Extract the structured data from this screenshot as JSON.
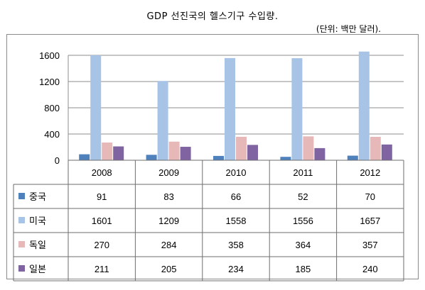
{
  "title": "GDP 선진국의 헬스기구 수입량.",
  "unit_note": "(단위: 백만 달러).",
  "chart_data": {
    "type": "bar",
    "title": "GDP 선진국의 헬스기구 수입량.",
    "ylim": [
      0,
      1600
    ],
    "yticks": [
      "0",
      "400",
      "800",
      "1200",
      "1600"
    ],
    "grid": true,
    "legend_placement": "data-table-left",
    "categories": [
      "2008",
      "2009",
      "2010",
      "2011",
      "2012"
    ],
    "series": [
      {
        "name": "중국",
        "color": "#4f81bd",
        "values": [
          91,
          83,
          66,
          52,
          70
        ]
      },
      {
        "name": "미국",
        "color": "#a7c4e7",
        "values": [
          1601,
          1209,
          1558,
          1556,
          1657
        ]
      },
      {
        "name": "독일",
        "color": "#e6b9b8",
        "values": [
          270,
          284,
          358,
          364,
          357
        ]
      },
      {
        "name": "일본",
        "color": "#8064a2",
        "values": [
          211,
          205,
          234,
          185,
          240
        ]
      }
    ],
    "table_values": [
      [
        "91",
        "83",
        "66",
        "52",
        "70"
      ],
      [
        "1601",
        "1209",
        "1558",
        "1556",
        "1657"
      ],
      [
        "270",
        "284",
        "358",
        "364",
        "357"
      ],
      [
        "211",
        "205",
        "234",
        "185",
        "240"
      ]
    ]
  }
}
